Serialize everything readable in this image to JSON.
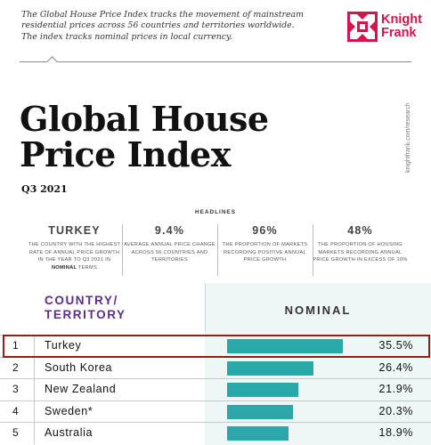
{
  "intro": [
    "The Global House Price Index tracks the movement of mainstream",
    "residential prices across 56 countries and territories worldwide.",
    "The index tracks nominal prices in local currency."
  ],
  "brand": {
    "line1": "Knight",
    "line2": "Frank",
    "color": "#d4144a"
  },
  "title": {
    "line1": "Global House",
    "line2": "Price Index"
  },
  "quarter": "Q3 2021",
  "side_url": "knightfrank.com/research",
  "headlines_label": "HEADLINES",
  "stats": [
    {
      "big": "TURKEY",
      "small_before": "THE COUNTRY WITH THE HIGHEST RATE OF ANNUAL PRICE GROWTH IN THE YEAR TO Q3 2021 IN ",
      "small_bold": "NOMINAL",
      "small_after": " TERMS"
    },
    {
      "big": "9.4%",
      "small_before": "AVERAGE ANNUAL PRICE CHANGE ACROSS 56 COUNTRIES AND TERRITORIES",
      "small_bold": "",
      "small_after": ""
    },
    {
      "big": "96%",
      "small_before": "THE PROPORTION OF MARKETS RECORDING POSITIVE ANNUAL PRICE GROWTH",
      "small_bold": "",
      "small_after": ""
    },
    {
      "big": "48%",
      "small_before": "THE PROPORTION OF HOUSING MARKETS RECORDING ANNUAL PRICE GROWTH IN EXCESS OF 10%",
      "small_bold": "",
      "small_after": ""
    }
  ],
  "table": {
    "col_country_line1": "COUNTRY/",
    "col_country_line2": "TERRITORY",
    "col_nominal": "NOMINAL",
    "bar_color": "#2aa7a8",
    "highlight_color": "#9b1b1b",
    "rows": [
      {
        "rank": "1",
        "country": "Turkey",
        "value": "35.5%",
        "num": 35.5
      },
      {
        "rank": "2",
        "country": "South Korea",
        "value": "26.4%",
        "num": 26.4
      },
      {
        "rank": "3",
        "country": "New Zealand",
        "value": "21.9%",
        "num": 21.9
      },
      {
        "rank": "4",
        "country": "Sweden*",
        "value": "20.3%",
        "num": 20.3
      },
      {
        "rank": "5",
        "country": "Australia",
        "value": "18.9%",
        "num": 18.9
      }
    ]
  }
}
